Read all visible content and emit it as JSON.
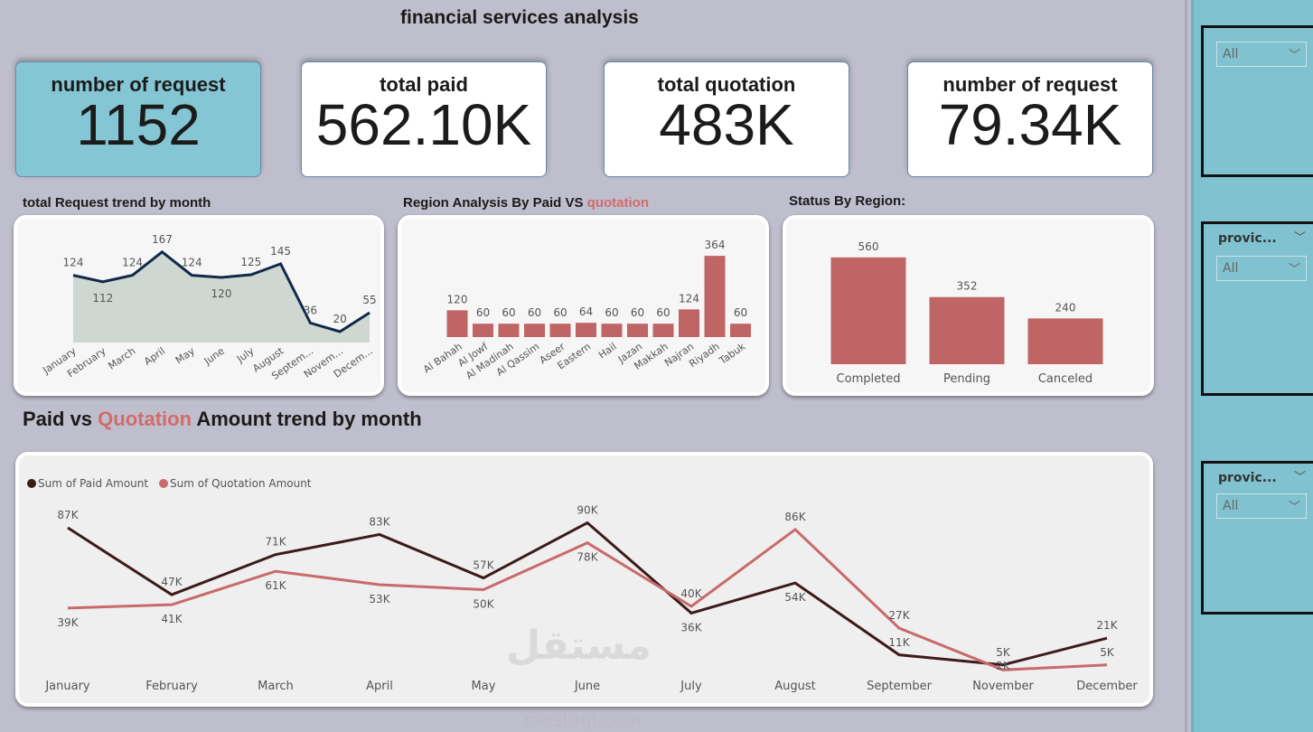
{
  "header": {
    "title": "financial services analysis"
  },
  "kpis": [
    {
      "label": "number of request",
      "value": "1152",
      "bg": "#85c6d4"
    },
    {
      "label": "total paid",
      "value": "562.10K",
      "bg": "#ffffff"
    },
    {
      "label": "total quotation",
      "value": "483K",
      "bg": "#ffffff"
    },
    {
      "label": "number of request",
      "value": "79.34K",
      "bg": "#ffffff"
    }
  ],
  "colors": {
    "navy": "#13294b",
    "area": "#cfd8d0",
    "bar": "#c06565",
    "paid": "#3d1a1a",
    "quotation": "#c96a6a",
    "accent": "#d36b6b"
  },
  "chart_titles": {
    "request_trend": "total Request trend by month",
    "region_a": "Region Analysis By Paid VS ",
    "region_b": "quotation",
    "status": "Status  By Region:",
    "amount_a": "Paid vs ",
    "amount_b": "Quotation",
    "amount_c": "  Amount  trend by month"
  },
  "chart_data": [
    {
      "type": "area",
      "categories": [
        "January",
        "February",
        "March",
        "April",
        "May",
        "June",
        "July",
        "August",
        "Septem...",
        "Novem...",
        "Decem..."
      ],
      "values": [
        124,
        112,
        124,
        167,
        124,
        120,
        125,
        145,
        36,
        20,
        55
      ]
    },
    {
      "type": "bar",
      "categories": [
        "Al Bahah",
        "Al Jowf",
        "Al Madinah",
        "Al Qassim",
        "Aseer",
        "Eastern",
        "Hail",
        "Jazan",
        "Makkah",
        "Najran",
        "Riyadh",
        "Tabuk"
      ],
      "values": [
        120,
        60,
        60,
        60,
        60,
        64,
        60,
        60,
        60,
        124,
        364,
        60
      ]
    },
    {
      "type": "bar",
      "categories": [
        "Completed",
        "Pending",
        "Canceled"
      ],
      "values": [
        560,
        352,
        240
      ]
    },
    {
      "type": "line",
      "categories": [
        "January",
        "February",
        "March",
        "April",
        "May",
        "June",
        "July",
        "August",
        "September",
        "November",
        "December"
      ],
      "series": [
        {
          "name": "Sum of Paid Amount",
          "values": [
            87,
            47,
            71,
            83,
            57,
            90,
            36,
            54,
            11,
            5,
            21
          ],
          "labels": [
            "87K",
            "47K",
            "71K",
            "83K",
            "57K",
            "90K",
            "36K",
            "54K",
            "11K",
            "5K",
            "21K"
          ]
        },
        {
          "name": "Sum of Quotation Amount",
          "values": [
            39,
            41,
            61,
            53,
            50,
            78,
            40,
            86,
            27,
            2,
            5
          ],
          "labels": [
            "39K",
            "41K",
            "61K",
            "53K",
            "50K",
            "78K",
            "40K",
            "86K",
            "27K",
            "2K",
            "5K"
          ]
        }
      ],
      "unit": "K"
    }
  ],
  "slicers": [
    {
      "header": "",
      "value": "All"
    },
    {
      "header": "provic...",
      "value": "All"
    },
    {
      "header": "provic...",
      "value": "All"
    }
  ],
  "watermark": {
    "arabic": "مستقل",
    "latin": "mostaql.com"
  }
}
